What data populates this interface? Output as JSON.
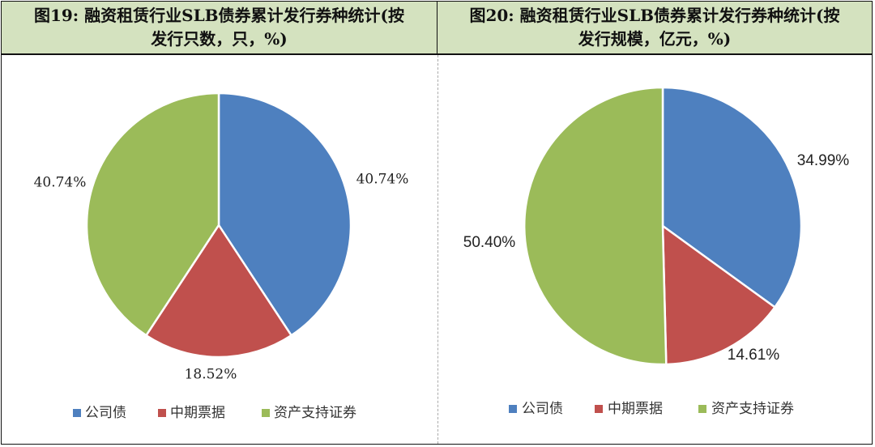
{
  "panels": [
    {
      "title_line1": "图19: 融资租赁行业SLB债券累计发行券种统计(按",
      "title_line2": "发行只数，只，%)"
    },
    {
      "title_line1": "图20: 融资租赁行业SLB债券累计发行券种统计(按",
      "title_line2": "发行规模，亿元，%)"
    }
  ],
  "chart_data": [
    {
      "type": "pie",
      "categories": [
        "公司债",
        "中期票据",
        "资产支持证券"
      ],
      "values": [
        40.74,
        18.52,
        40.74
      ],
      "labels": [
        "40.74%",
        "18.52%",
        "40.74%"
      ],
      "colors": [
        "#4e80bf",
        "#c0504d",
        "#9bbb59"
      ],
      "label_font": "serif",
      "legend_position": "bottom"
    },
    {
      "type": "pie",
      "categories": [
        "公司债",
        "中期票据",
        "资产支持证券"
      ],
      "values": [
        34.99,
        14.61,
        50.4
      ],
      "labels": [
        "34.99%",
        "14.61%",
        "50.40%"
      ],
      "colors": [
        "#4e80bf",
        "#c0504d",
        "#9bbb59"
      ],
      "label_font": "sans",
      "legend_position": "bottom"
    }
  ]
}
